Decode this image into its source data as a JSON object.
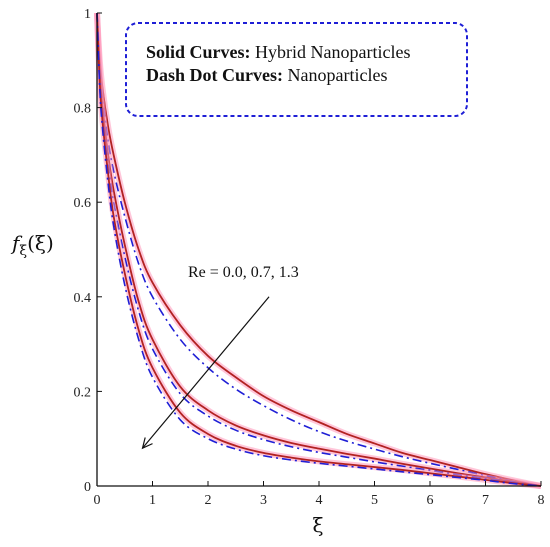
{
  "chart_data": {
    "type": "line",
    "xlabel": "ξ",
    "ylabel_main": "f",
    "ylabel_sub": "ξ",
    "ylabel_arg": "(ξ)",
    "xlim": [
      0,
      8
    ],
    "ylim": [
      0,
      1
    ],
    "x_ticks": [
      0,
      1,
      2,
      3,
      4,
      5,
      6,
      7,
      8
    ],
    "y_ticks": [
      0,
      0.2,
      0.4,
      0.6,
      0.8,
      1
    ],
    "x_tick_labels": [
      "0",
      "1",
      "2",
      "3",
      "4",
      "5",
      "6",
      "7",
      "8"
    ],
    "y_tick_labels": [
      "0",
      "0.2",
      "0.4",
      "0.6",
      "0.8",
      "1"
    ],
    "grid": false,
    "legend": {
      "placement": "top-right",
      "line1_bold": "Solid Curves:",
      "line1_text": " Hybrid Nanoparticles",
      "line2_bold": "Dash Dot Curves:",
      "line2_text": " Nanoparticles"
    },
    "annotation": {
      "text": "Re = 0.0, 0.7, 1.3",
      "arrow_from": [
        3.1,
        0.4
      ],
      "arrow_to": [
        0.82,
        0.08
      ]
    },
    "colors": {
      "solid": "#b22222",
      "dashdot": "#1f1fd6",
      "glow": "#ff99bb",
      "legend_border": "#1f1fd6"
    },
    "series": [
      {
        "style": "solid",
        "x": [
          0,
          0.05,
          0.1,
          0.2,
          0.3,
          0.5,
          0.75,
          1,
          1.5,
          2,
          2.5,
          3,
          3.5,
          4,
          4.5,
          5,
          5.5,
          6,
          6.5,
          7,
          7.5,
          8
        ],
        "y": [
          1,
          0.9,
          0.84,
          0.76,
          0.7,
          0.6,
          0.5,
          0.43,
          0.34,
          0.275,
          0.23,
          0.19,
          0.16,
          0.135,
          0.11,
          0.09,
          0.07,
          0.055,
          0.04,
          0.025,
          0.012,
          0
        ]
      },
      {
        "style": "dashdot",
        "x": [
          0,
          0.05,
          0.1,
          0.2,
          0.3,
          0.5,
          0.75,
          1,
          1.5,
          2,
          2.5,
          3,
          3.5,
          4,
          4.5,
          5,
          5.5,
          6,
          6.5,
          7,
          7.5,
          8
        ],
        "y": [
          1,
          0.89,
          0.82,
          0.73,
          0.665,
          0.57,
          0.47,
          0.4,
          0.31,
          0.25,
          0.205,
          0.17,
          0.14,
          0.115,
          0.095,
          0.078,
          0.062,
          0.048,
          0.035,
          0.022,
          0.01,
          0
        ]
      },
      {
        "style": "solid",
        "x": [
          0,
          0.05,
          0.1,
          0.2,
          0.3,
          0.5,
          0.75,
          1,
          1.5,
          2,
          2.5,
          3,
          3.5,
          4,
          4.5,
          5,
          5.5,
          6,
          6.5,
          7,
          7.5,
          8
        ],
        "y": [
          1,
          0.87,
          0.8,
          0.7,
          0.625,
          0.51,
          0.39,
          0.31,
          0.21,
          0.16,
          0.128,
          0.107,
          0.091,
          0.079,
          0.068,
          0.058,
          0.047,
          0.037,
          0.027,
          0.018,
          0.009,
          0
        ]
      },
      {
        "style": "dashdot",
        "x": [
          0,
          0.05,
          0.1,
          0.2,
          0.3,
          0.5,
          0.75,
          1,
          1.5,
          2,
          2.5,
          3,
          3.5,
          4,
          4.5,
          5,
          5.5,
          6,
          6.5,
          7,
          7.5,
          8
        ],
        "y": [
          1,
          0.86,
          0.785,
          0.68,
          0.6,
          0.485,
          0.37,
          0.29,
          0.195,
          0.148,
          0.118,
          0.098,
          0.083,
          0.071,
          0.061,
          0.051,
          0.042,
          0.033,
          0.024,
          0.016,
          0.008,
          0
        ]
      },
      {
        "style": "solid",
        "x": [
          0,
          0.05,
          0.1,
          0.2,
          0.3,
          0.5,
          0.75,
          1,
          1.5,
          2,
          2.5,
          3,
          3.5,
          4,
          4.5,
          5,
          5.5,
          6,
          6.5,
          7,
          7.5,
          8
        ],
        "y": [
          1,
          0.85,
          0.77,
          0.66,
          0.57,
          0.45,
          0.33,
          0.25,
          0.155,
          0.11,
          0.085,
          0.07,
          0.06,
          0.052,
          0.046,
          0.04,
          0.034,
          0.027,
          0.02,
          0.013,
          0.006,
          0
        ]
      },
      {
        "style": "dashdot",
        "x": [
          0,
          0.05,
          0.1,
          0.2,
          0.3,
          0.5,
          0.75,
          1,
          1.5,
          2,
          2.5,
          3,
          3.5,
          4,
          4.5,
          5,
          5.5,
          6,
          6.5,
          7,
          7.5,
          8
        ],
        "y": [
          1,
          0.84,
          0.755,
          0.64,
          0.55,
          0.425,
          0.31,
          0.23,
          0.14,
          0.1,
          0.078,
          0.064,
          0.055,
          0.048,
          0.042,
          0.036,
          0.03,
          0.024,
          0.018,
          0.012,
          0.005,
          0
        ]
      }
    ]
  }
}
